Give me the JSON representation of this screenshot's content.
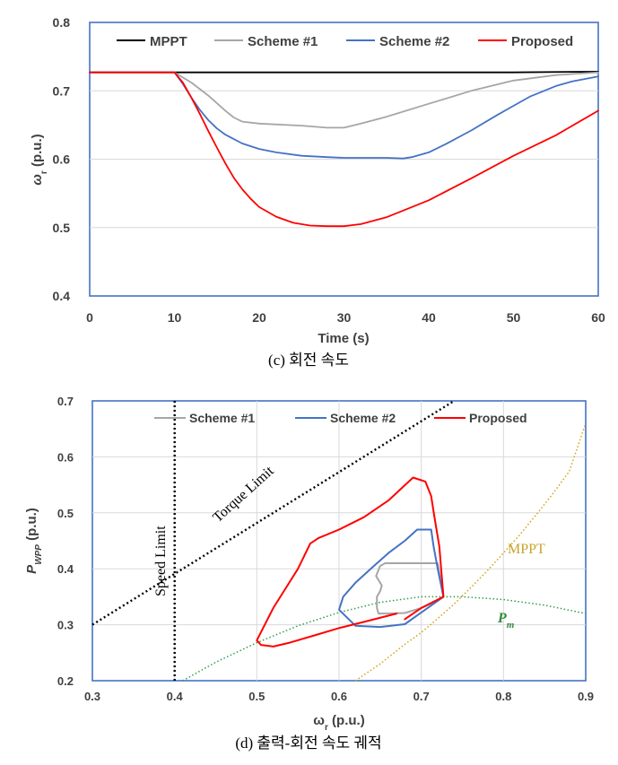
{
  "chart_data": [
    {
      "type": "line",
      "caption": "(c) 회전 속도",
      "xlabel": "Time (s)",
      "ylabel_main": "ω",
      "ylabel_sub": "r",
      "ylabel_unit": " (p.u.)",
      "xlim": [
        0,
        60
      ],
      "ylim": [
        0.4,
        0.8
      ],
      "xticks": [
        "0",
        "10",
        "20",
        "30",
        "40",
        "50",
        "60"
      ],
      "yticks": [
        "0.4",
        "0.5",
        "0.6",
        "0.7",
        "0.8"
      ],
      "grid": "horizontal",
      "legend_position": "top",
      "series": [
        {
          "name": "MPPT",
          "color": "#000000",
          "x": [
            0,
            10,
            15,
            20,
            30,
            40,
            50,
            60
          ],
          "y": [
            0.727,
            0.727,
            0.727,
            0.727,
            0.727,
            0.727,
            0.727,
            0.728
          ]
        },
        {
          "name": "Scheme #1",
          "color": "#a6a6a6",
          "x": [
            0,
            10,
            12,
            14,
            16,
            17,
            18,
            20,
            25,
            28,
            30,
            32,
            35,
            40,
            45,
            50,
            55,
            60
          ],
          "y": [
            0.727,
            0.727,
            0.712,
            0.693,
            0.671,
            0.661,
            0.655,
            0.652,
            0.649,
            0.646,
            0.646,
            0.652,
            0.662,
            0.681,
            0.7,
            0.715,
            0.723,
            0.727
          ]
        },
        {
          "name": "Scheme #2",
          "color": "#4472c4",
          "x": [
            0,
            10,
            11,
            12,
            13,
            14,
            15,
            16,
            18,
            20,
            22,
            25,
            28,
            30,
            33,
            35,
            37,
            38,
            40,
            42,
            45,
            48,
            50,
            52,
            55,
            57,
            60
          ],
          "y": [
            0.727,
            0.727,
            0.71,
            0.69,
            0.672,
            0.657,
            0.645,
            0.636,
            0.623,
            0.615,
            0.61,
            0.605,
            0.603,
            0.602,
            0.602,
            0.602,
            0.601,
            0.603,
            0.61,
            0.622,
            0.642,
            0.664,
            0.678,
            0.692,
            0.707,
            0.714,
            0.721
          ]
        },
        {
          "name": "Proposed",
          "color": "#ff0000",
          "x": [
            0,
            10,
            11,
            12,
            13,
            14,
            15,
            16,
            17,
            18,
            19,
            20,
            22,
            24,
            26,
            28,
            30,
            32,
            35,
            40,
            45,
            50,
            55,
            60
          ],
          "y": [
            0.727,
            0.727,
            0.712,
            0.69,
            0.666,
            0.641,
            0.617,
            0.594,
            0.573,
            0.556,
            0.542,
            0.53,
            0.516,
            0.507,
            0.503,
            0.502,
            0.502,
            0.505,
            0.515,
            0.54,
            0.572,
            0.605,
            0.635,
            0.671
          ]
        }
      ]
    },
    {
      "type": "line",
      "caption": "(d) 출력-회전 속도 궤적",
      "xlabel_main": "ω",
      "xlabel_sub": "r",
      "xlabel_unit": " (p.u.)",
      "ylabel_main": "P",
      "ylabel_sub": "WPP",
      "ylabel_unit": " (p.u.)",
      "xlim": [
        0.3,
        0.9
      ],
      "ylim": [
        0.2,
        0.7
      ],
      "xticks": [
        "0.3",
        "0.4",
        "0.5",
        "0.6",
        "0.7",
        "0.8",
        "0.9"
      ],
      "yticks": [
        "0.2",
        "0.3",
        "0.4",
        "0.5",
        "0.6",
        "0.7"
      ],
      "grid": "both",
      "legend_position": "top",
      "annotations": {
        "speed_limit": "Speed Limit",
        "torque_limit": "Torque Limit",
        "mppt": "MPPT",
        "pm_main": "P",
        "pm_sub": "m"
      },
      "reference_lines": [
        {
          "name": "Speed Limit",
          "color": "#000000",
          "style": "dotted",
          "x": [
            0.4,
            0.4
          ],
          "y": [
            0.2,
            0.7
          ]
        },
        {
          "name": "Torque Limit",
          "color": "#000000",
          "style": "dotted",
          "x": [
            0.3,
            0.74
          ],
          "y": [
            0.3,
            0.7
          ]
        },
        {
          "name": "MPPT",
          "color": "#d4a017",
          "style": "dotted",
          "x": [
            0.62,
            0.65,
            0.68,
            0.7,
            0.72,
            0.74,
            0.76,
            0.78,
            0.8,
            0.82,
            0.84,
            0.86,
            0.88,
            0.9
          ],
          "y": [
            0.2,
            0.23,
            0.265,
            0.286,
            0.311,
            0.337,
            0.366,
            0.396,
            0.428,
            0.461,
            0.497,
            0.534,
            0.574,
            0.66
          ]
        },
        {
          "name": "Pm",
          "color": "#2e9e4a",
          "style": "dotted",
          "x": [
            0.41,
            0.45,
            0.5,
            0.55,
            0.6,
            0.65,
            0.7,
            0.75,
            0.8,
            0.85,
            0.9
          ],
          "y": [
            0.2,
            0.233,
            0.268,
            0.298,
            0.322,
            0.34,
            0.35,
            0.35,
            0.345,
            0.335,
            0.32
          ]
        }
      ],
      "series": [
        {
          "name": "Scheme #1",
          "color": "#a6a6a6",
          "x": [
            0.727,
            0.72,
            0.7,
            0.68,
            0.66,
            0.648,
            0.646,
            0.646,
            0.65,
            0.652,
            0.645,
            0.65,
            0.656,
            0.657,
            0.662,
            0.67,
            0.68,
            0.7,
            0.72,
            0.727
          ],
          "y": [
            0.35,
            0.343,
            0.33,
            0.321,
            0.32,
            0.32,
            0.33,
            0.35,
            0.36,
            0.37,
            0.387,
            0.405,
            0.41,
            0.41,
            0.41,
            0.41,
            0.41,
            0.41,
            0.41,
            0.35
          ]
        },
        {
          "name": "Scheme #2",
          "color": "#4472c4",
          "x": [
            0.727,
            0.7,
            0.68,
            0.65,
            0.62,
            0.6,
            0.605,
            0.62,
            0.64,
            0.66,
            0.68,
            0.695,
            0.712,
            0.715,
            0.72,
            0.727
          ],
          "y": [
            0.35,
            0.322,
            0.301,
            0.296,
            0.298,
            0.327,
            0.35,
            0.375,
            0.402,
            0.428,
            0.45,
            0.47,
            0.47,
            0.44,
            0.4,
            0.35
          ]
        },
        {
          "name": "Proposed",
          "color": "#ff0000",
          "x": [
            0.67,
            0.63,
            0.6,
            0.57,
            0.54,
            0.52,
            0.505,
            0.5,
            0.52,
            0.55,
            0.565,
            0.575,
            0.6,
            0.63,
            0.66,
            0.69,
            0.705,
            0.712,
            0.716,
            0.722,
            0.727,
            0.7,
            0.68
          ],
          "y": [
            0.32,
            0.305,
            0.294,
            0.281,
            0.268,
            0.261,
            0.264,
            0.272,
            0.33,
            0.4,
            0.445,
            0.455,
            0.47,
            0.492,
            0.522,
            0.563,
            0.556,
            0.53,
            0.493,
            0.44,
            0.35,
            0.33,
            0.31
          ]
        }
      ]
    }
  ]
}
